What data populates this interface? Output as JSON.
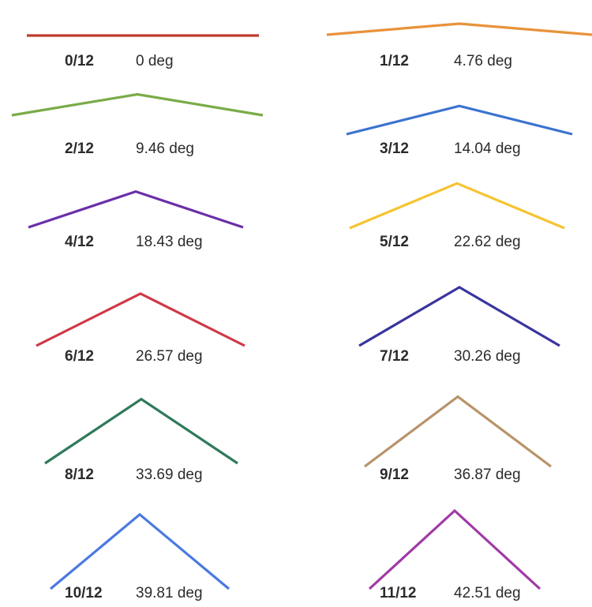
{
  "pitches": [
    {
      "ratio": "0/12",
      "angle_label": "0 deg",
      "rise": 0,
      "run": 12,
      "angle_deg": 0,
      "color": "#c0392b"
    },
    {
      "ratio": "1/12",
      "angle_label": "4.76 deg",
      "rise": 1,
      "run": 12,
      "angle_deg": 4.76,
      "color": "#e8923a"
    },
    {
      "ratio": "2/12",
      "angle_label": "9.46 deg",
      "rise": 2,
      "run": 12,
      "angle_deg": 9.46,
      "color": "#7aab48"
    },
    {
      "ratio": "3/12",
      "angle_label": "14.04 deg",
      "rise": 3,
      "run": 12,
      "angle_deg": 14.04,
      "color": "#3a73cf"
    },
    {
      "ratio": "4/12",
      "angle_label": "18.43 deg",
      "rise": 4,
      "run": 12,
      "angle_deg": 18.43,
      "color": "#6a2fa8"
    },
    {
      "ratio": "5/12",
      "angle_label": "22.62 deg",
      "rise": 5,
      "run": 12,
      "angle_deg": 22.62,
      "color": "#f5c431"
    },
    {
      "ratio": "6/12",
      "angle_label": "26.57 deg",
      "rise": 6,
      "run": 12,
      "angle_deg": 26.57,
      "color": "#d03848"
    },
    {
      "ratio": "7/12",
      "angle_label": "30.26 deg",
      "rise": 7,
      "run": 12,
      "angle_deg": 30.26,
      "color": "#3a349e"
    },
    {
      "ratio": "8/12",
      "angle_label": "33.69 deg",
      "rise": 8,
      "run": 12,
      "angle_deg": 33.69,
      "color": "#2f7a5a"
    },
    {
      "ratio": "9/12",
      "angle_label": "36.87 deg",
      "rise": 9,
      "run": 12,
      "angle_deg": 36.87,
      "color": "#b8946a"
    },
    {
      "ratio": "10/12",
      "angle_label": "39.81 deg",
      "rise": 10,
      "run": 12,
      "angle_deg": 39.81,
      "color": "#4a79e2"
    },
    {
      "ratio": "11/12",
      "angle_label": "42.51 deg",
      "rise": 11,
      "run": 12,
      "angle_deg": 42.51,
      "color": "#a03aa6"
    }
  ]
}
